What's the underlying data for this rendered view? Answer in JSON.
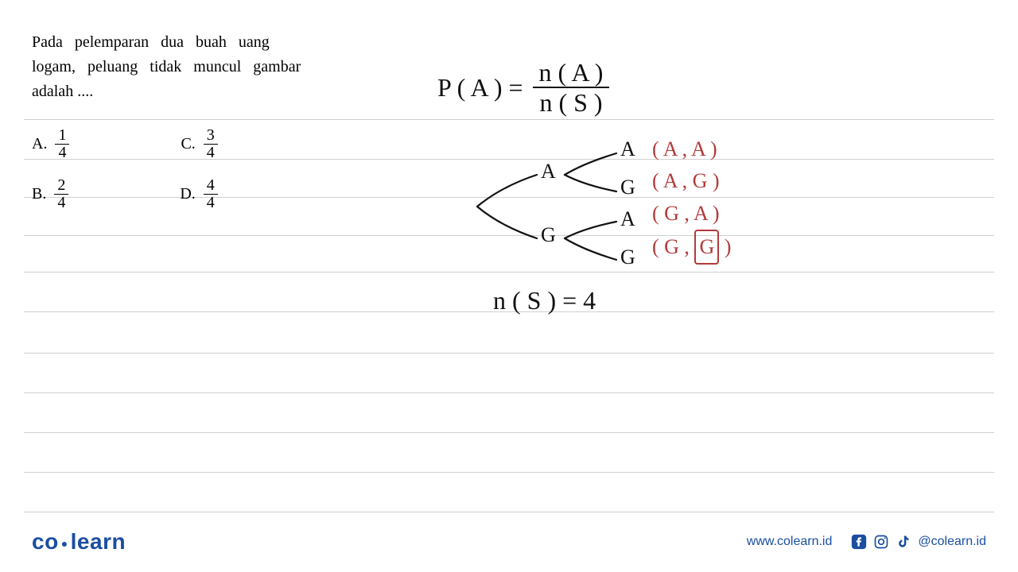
{
  "lines_y": [
    150,
    200,
    248,
    296,
    342,
    392,
    444,
    494,
    544,
    594,
    644
  ],
  "line_color": "#d0d0d0",
  "question": {
    "line1": "Pada pelemparan dua buah uang",
    "line2": "logam, peluang tidak muncul gambar",
    "line3": "adalah ....",
    "fontsize": 20,
    "color": "#000000"
  },
  "options": {
    "A": {
      "label": "A.",
      "num": "1",
      "den": "4"
    },
    "B": {
      "label": "B.",
      "num": "2",
      "den": "4"
    },
    "C": {
      "label": "C.",
      "num": "3",
      "den": "4"
    },
    "D": {
      "label": "D.",
      "num": "4",
      "den": "4"
    }
  },
  "handwriting": {
    "color_black": "#111111",
    "color_red": "#b43a3a",
    "formula": {
      "lhs": "P ( A )  =",
      "num": "n ( A )",
      "den": "n ( S )",
      "fontsize": 32
    },
    "tree": {
      "level1": [
        "A",
        "G"
      ],
      "level2": [
        "A",
        "G",
        "A",
        "G"
      ],
      "label_fontsize": 26,
      "stroke_color": "#111111",
      "stroke_width": 2
    },
    "outcomes": [
      "( A , A )",
      "( A , G )",
      "( G , A )",
      "( G , G )"
    ],
    "boxed_index": 3,
    "ns": "n ( S ) =  4"
  },
  "footer": {
    "brand_left": "co",
    "brand_right": "learn",
    "brand_color": "#1a4ea0",
    "url": "www.colearn.id",
    "handle": "@colearn.id"
  }
}
